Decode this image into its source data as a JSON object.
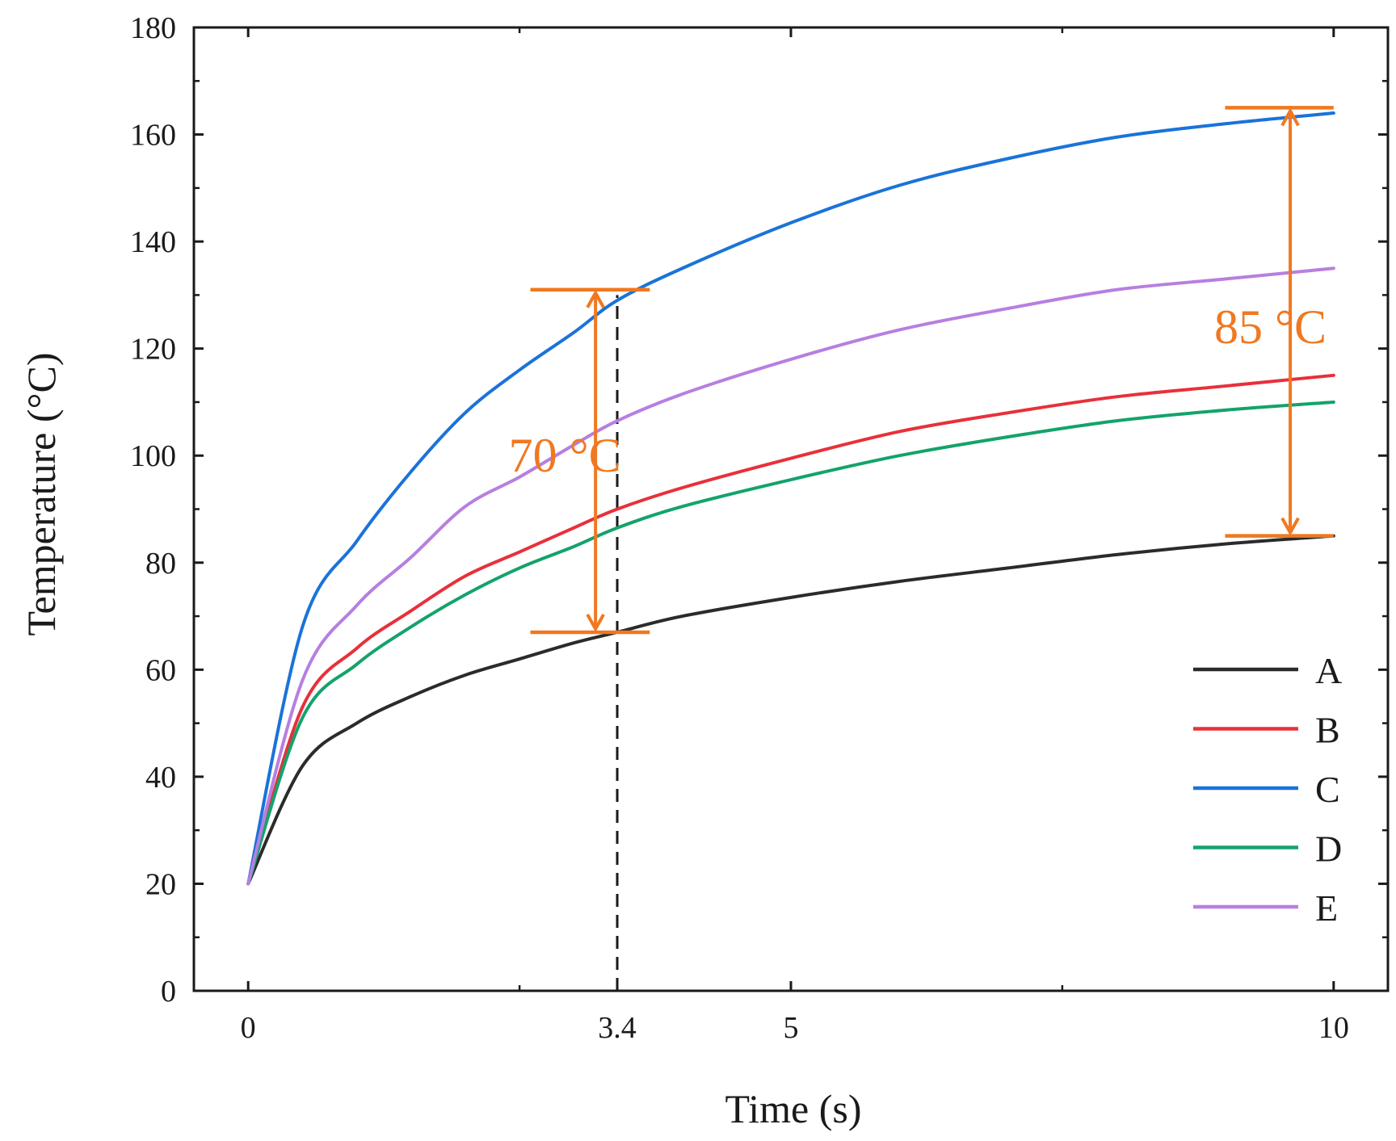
{
  "chart_data": {
    "type": "line",
    "title": "",
    "xlabel": "Time (s)",
    "ylabel": "Temperature (°C)",
    "xlim": [
      -0.5,
      10.5
    ],
    "ylim": [
      0,
      180
    ],
    "xticks": [
      0,
      3.4,
      5,
      10
    ],
    "xtick_labels": [
      "0",
      "3.4",
      "5",
      "10"
    ],
    "yticks": [
      0,
      20,
      40,
      60,
      80,
      100,
      120,
      140,
      160,
      180
    ],
    "ytick_labels": [
      "0",
      "20",
      "40",
      "60",
      "80",
      "100",
      "120",
      "140",
      "160",
      "180"
    ],
    "grid": false,
    "legend_position": "bottom-right",
    "x": [
      0,
      0.5,
      1,
      1.5,
      2,
      2.5,
      3,
      3.4,
      4,
      5,
      6,
      7,
      8,
      9,
      10
    ],
    "series": [
      {
        "name": "A",
        "color": "#2b2b2b",
        "values": [
          20,
          42,
          50,
          55,
          59,
          62,
          65,
          67,
          70,
          73.5,
          76.5,
          79,
          81.5,
          83.5,
          85
        ]
      },
      {
        "name": "B",
        "color": "#e8303a",
        "values": [
          20,
          53,
          64,
          71,
          77.5,
          82,
          86.5,
          90,
          94,
          99.5,
          104.5,
          108,
          111,
          113,
          115
        ]
      },
      {
        "name": "C",
        "color": "#1a73d9",
        "values": [
          20,
          68,
          84,
          97,
          108,
          116,
          123,
          129,
          135,
          143.5,
          150.5,
          155.5,
          159.5,
          162,
          164
        ]
      },
      {
        "name": "D",
        "color": "#13a36b",
        "values": [
          20,
          51,
          61,
          68,
          74,
          79,
          83,
          86.5,
          90.5,
          95.5,
          100,
          103.5,
          106.5,
          108.5,
          110
        ]
      },
      {
        "name": "E",
        "color": "#b77fe0",
        "values": [
          20,
          58,
          72,
          81,
          90.5,
          96,
          102,
          106.5,
          111.5,
          118,
          123.5,
          127.5,
          131,
          133,
          135
        ]
      }
    ],
    "reference_line": {
      "x": 3.4,
      "y_from": 0,
      "y_to": 130,
      "style": "dashed",
      "color": "#1a1a1a"
    },
    "annotations": [
      {
        "label": "70 °C",
        "x": 3.2,
        "y_from": 67,
        "y_to": 131,
        "cap_from_x": 2.6,
        "cap_to_x": 3.7,
        "label_x": 2.4,
        "label_y": 100,
        "color": "#f07820"
      },
      {
        "label": "85 °C",
        "x": 9.6,
        "y_from": 85,
        "y_to": 165,
        "cap_from_x": 9.0,
        "cap_to_x": 10.0,
        "label_x": 8.9,
        "label_y": 124,
        "color": "#f07820"
      }
    ]
  }
}
